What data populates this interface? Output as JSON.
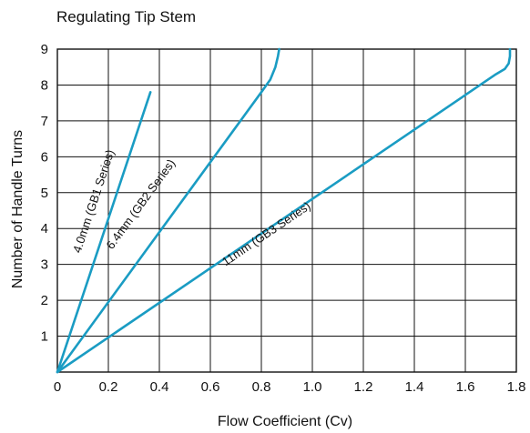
{
  "chart_data": {
    "type": "line",
    "title": "Regulating Tip Stem",
    "xlabel": "Flow Coefficient (Cv)",
    "ylabel": "Number of Handle Turns",
    "xlim": [
      0,
      1.8
    ],
    "ylim": [
      0,
      9
    ],
    "x_ticks": [
      "0",
      "0.2",
      "0.4",
      "0.6",
      "0.8",
      "1.0",
      "1.2",
      "1.4",
      "1.6",
      "1.8"
    ],
    "y_ticks": [
      "0",
      "1",
      "2",
      "3",
      "4",
      "5",
      "6",
      "7",
      "8",
      "9"
    ],
    "grid": true,
    "legend": "none",
    "series_color": "#1a9cc3",
    "series": [
      {
        "name": "4.0mm (GB1 Series)",
        "x": [
          0,
          0.365
        ],
        "y": [
          0,
          7.8
        ]
      },
      {
        "name": "6.4mm (GB2 Series)",
        "x": [
          0,
          0.8,
          0.835,
          0.855,
          0.865,
          0.87
        ],
        "y": [
          0,
          7.8,
          8.15,
          8.5,
          8.8,
          9.0
        ]
      },
      {
        "name": "11mm (GB3 Series)",
        "x": [
          0,
          1.72,
          1.755,
          1.77,
          1.775,
          1.775
        ],
        "y": [
          0,
          8.3,
          8.45,
          8.6,
          8.8,
          9.0
        ]
      }
    ],
    "annotations": [
      {
        "text": "4.0mm (GB1 Series)",
        "series": 0
      },
      {
        "text": "6.4mm (GB2 Series)",
        "series": 1
      },
      {
        "text": "11mm (GB3 Series)",
        "series": 2
      }
    ]
  }
}
